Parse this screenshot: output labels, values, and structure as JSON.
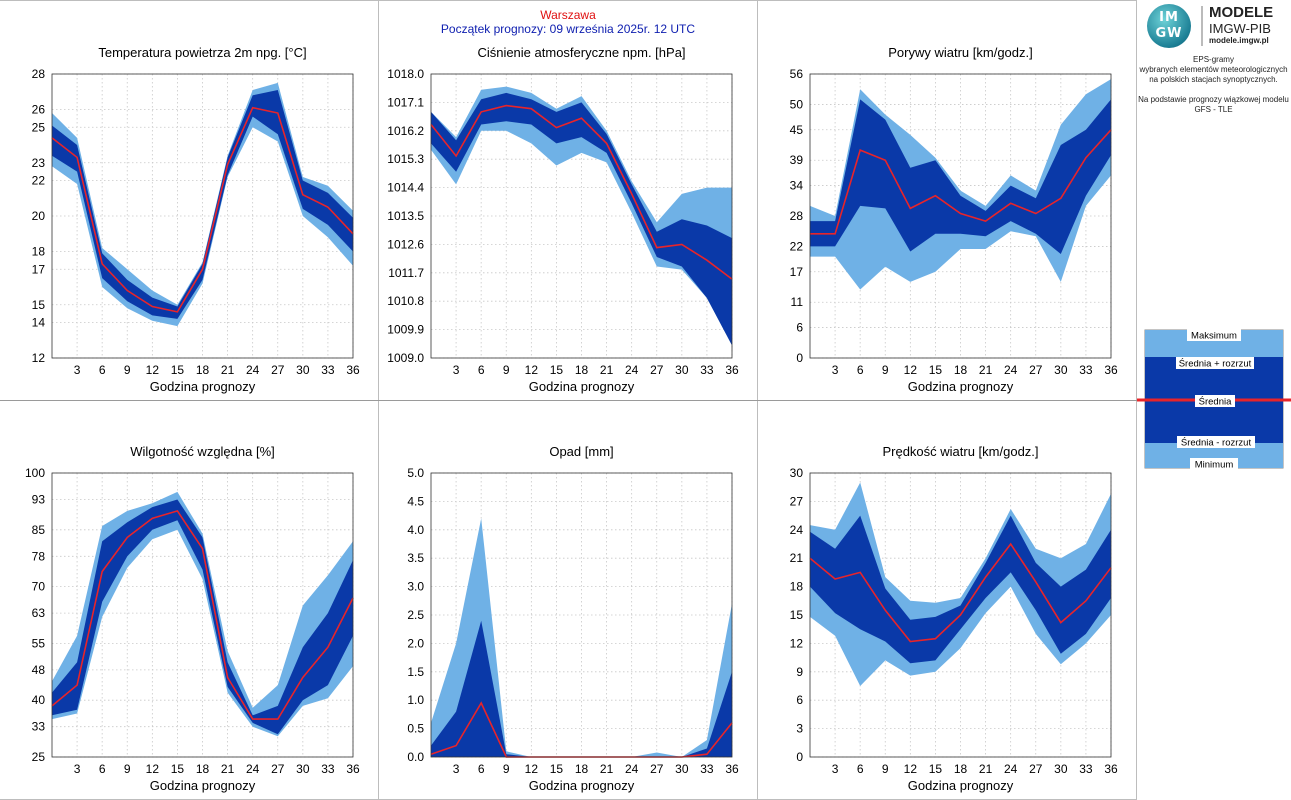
{
  "header": {
    "station": "Warszawa",
    "forecast_start": "Początek prognozy: 09 września 2025r. 12 UTC"
  },
  "logo": {
    "line1": "MODELE",
    "line2": "IMGW-PIB",
    "line3": "modele.imgw.pl",
    "mark_top": "IM",
    "mark_bottom": "GW"
  },
  "description": {
    "line1": "EPS-gramy",
    "line2": "wybranych elementów meteorologicznych",
    "line3": "na polskich stacjach  synoptycznych.",
    "line4": "Na podstawie prognozy wiązkowej modelu",
    "line5": "GFS - TLE"
  },
  "legend": {
    "max": "Maksimum",
    "upper": "Średnia + rozrzut",
    "mean": "Średnia",
    "lower": "Średnia - rozrzut",
    "min": "Minimum"
  },
  "colors": {
    "outer_band": "#6fb1e6",
    "inner_band": "#0a39a8",
    "mean_line": "#e8242a",
    "grid": "#c8c8c8",
    "station_text": "#e01010",
    "start_text": "#1020b0"
  },
  "chart_data": [
    {
      "type": "area",
      "title": "Temperatura powietrza 2m npg. [°C]",
      "xlabel": "Godzina prognozy",
      "x": [
        0,
        3,
        6,
        9,
        12,
        15,
        18,
        21,
        24,
        27,
        30,
        33,
        36
      ],
      "xticks": [
        3,
        6,
        9,
        12,
        15,
        18,
        21,
        24,
        27,
        30,
        33,
        36
      ],
      "ylim": [
        12,
        28
      ],
      "yticks": [
        12,
        14,
        15,
        17,
        18,
        20,
        22,
        23,
        25,
        26,
        28
      ],
      "ytick_labels": [
        "12",
        "14",
        "15",
        "17",
        "18",
        "20",
        "22",
        "23",
        "25",
        "26",
        "28"
      ],
      "series": [
        {
          "name": "Maksimum",
          "values": [
            25.8,
            24.4,
            18.2,
            17.0,
            15.8,
            15.0,
            17.4,
            23.4,
            27.1,
            27.5,
            22.2,
            21.7,
            20.3
          ]
        },
        {
          "name": "Średnia + rozrzut",
          "values": [
            25.1,
            24.0,
            17.9,
            16.4,
            15.4,
            14.9,
            17.3,
            23.3,
            26.8,
            27.1,
            22.0,
            21.3,
            19.9
          ]
        },
        {
          "name": "Średnia",
          "values": [
            24.4,
            23.3,
            17.3,
            15.8,
            14.9,
            14.6,
            17.0,
            22.9,
            26.1,
            25.8,
            21.2,
            20.5,
            19.0
          ]
        },
        {
          "name": "Średnia - rozrzut",
          "values": [
            23.4,
            22.5,
            16.5,
            15.2,
            14.4,
            14.2,
            16.4,
            22.3,
            25.6,
            24.6,
            20.4,
            19.5,
            18.0
          ]
        },
        {
          "name": "Minimum",
          "values": [
            22.8,
            21.8,
            16.0,
            14.8,
            14.1,
            13.8,
            16.2,
            22.2,
            25.0,
            24.2,
            20.0,
            18.8,
            17.2
          ]
        }
      ]
    },
    {
      "type": "area",
      "title": "Ciśnienie atmosferyczne npm. [hPa]",
      "xlabel": "Godzina prognozy",
      "x": [
        0,
        3,
        6,
        9,
        12,
        15,
        18,
        21,
        24,
        27,
        30,
        33,
        36
      ],
      "xticks": [
        3,
        6,
        9,
        12,
        15,
        18,
        21,
        24,
        27,
        30,
        33,
        36
      ],
      "ylim": [
        1009.0,
        1018.0
      ],
      "yticks": [
        1009.0,
        1009.9,
        1010.8,
        1011.7,
        1012.6,
        1013.5,
        1014.4,
        1015.3,
        1016.2,
        1017.1,
        1018.0
      ],
      "ytick_labels": [
        "1009.0",
        "1009.9",
        "1010.8",
        "1011.7",
        "1012.6",
        "1013.5",
        "1014.4",
        "1015.3",
        "1016.2",
        "1017.1",
        "1018.0"
      ],
      "series": [
        {
          "name": "Maksimum",
          "values": [
            1016.8,
            1016.0,
            1017.5,
            1017.6,
            1017.4,
            1016.9,
            1017.3,
            1016.2,
            1014.6,
            1013.3,
            1014.2,
            1014.4,
            1014.4
          ]
        },
        {
          "name": "Średnia + rozrzut",
          "values": [
            1016.8,
            1015.9,
            1017.2,
            1017.4,
            1017.2,
            1016.8,
            1017.1,
            1016.1,
            1014.5,
            1013.0,
            1013.4,
            1013.2,
            1012.8
          ]
        },
        {
          "name": "Średnia",
          "values": [
            1016.4,
            1015.4,
            1016.8,
            1017.0,
            1016.9,
            1016.3,
            1016.6,
            1015.8,
            1014.2,
            1012.5,
            1012.6,
            1012.1,
            1011.5
          ]
        },
        {
          "name": "Średnia - rozrzut",
          "values": [
            1015.8,
            1014.9,
            1016.4,
            1016.5,
            1016.4,
            1015.8,
            1016.0,
            1015.5,
            1013.9,
            1012.2,
            1011.9,
            1010.9,
            1009.4
          ]
        },
        {
          "name": "Minimum",
          "values": [
            1015.6,
            1014.5,
            1016.2,
            1016.2,
            1015.8,
            1015.1,
            1015.5,
            1015.2,
            1013.6,
            1011.9,
            1011.8,
            1010.9,
            1009.4
          ]
        }
      ]
    },
    {
      "type": "area",
      "title": "Porywy wiatru [km/godz.]",
      "xlabel": "Godzina prognozy",
      "x": [
        0,
        3,
        6,
        9,
        12,
        15,
        18,
        21,
        24,
        27,
        30,
        33,
        36
      ],
      "xticks": [
        3,
        6,
        9,
        12,
        15,
        18,
        21,
        24,
        27,
        30,
        33,
        36
      ],
      "ylim": [
        0,
        56
      ],
      "yticks": [
        0,
        6,
        11,
        17,
        22,
        28,
        34,
        39,
        45,
        50,
        56
      ],
      "ytick_labels": [
        "0",
        "6",
        "11",
        "17",
        "22",
        "28",
        "34",
        "39",
        "45",
        "50",
        "56"
      ],
      "series": [
        {
          "name": "Maksimum",
          "values": [
            30.0,
            28.0,
            53.0,
            48.0,
            44.0,
            39.5,
            33.0,
            30.0,
            36.0,
            33.0,
            46.0,
            52.0,
            55.0
          ]
        },
        {
          "name": "Średnia + rozrzut",
          "values": [
            27.0,
            27.0,
            51.0,
            47.0,
            37.5,
            39.0,
            32.0,
            29.0,
            34.0,
            31.5,
            42.0,
            45.0,
            51.0
          ]
        },
        {
          "name": "Średnia",
          "values": [
            24.5,
            24.5,
            41.0,
            39.0,
            29.5,
            32.0,
            28.5,
            27.0,
            30.5,
            28.5,
            31.5,
            39.5,
            45.0
          ]
        },
        {
          "name": "Średnia - rozrzut",
          "values": [
            22.0,
            22.0,
            30.0,
            29.5,
            21.0,
            24.5,
            24.5,
            24.0,
            27.0,
            24.5,
            20.5,
            32.0,
            40.0
          ]
        },
        {
          "name": "Minimum",
          "values": [
            20.0,
            20.0,
            13.5,
            18.0,
            15.0,
            17.0,
            21.5,
            21.5,
            25.0,
            24.0,
            15.0,
            30.0,
            36.0
          ]
        }
      ]
    },
    {
      "type": "area",
      "title": "Wilgotność względna [%]",
      "xlabel": "Godzina prognozy",
      "x": [
        0,
        3,
        6,
        9,
        12,
        15,
        18,
        21,
        24,
        27,
        30,
        33,
        36
      ],
      "xticks": [
        3,
        6,
        9,
        12,
        15,
        18,
        21,
        24,
        27,
        30,
        33,
        36
      ],
      "ylim": [
        25,
        100
      ],
      "yticks": [
        25,
        33,
        40,
        48,
        55,
        63,
        70,
        78,
        85,
        93,
        100
      ],
      "ytick_labels": [
        "25",
        "33",
        "40",
        "48",
        "55",
        "63",
        "70",
        "78",
        "85",
        "93",
        "100"
      ],
      "series": [
        {
          "name": "Maksimum",
          "values": [
            45.0,
            57.0,
            86.0,
            90.0,
            92.0,
            95.0,
            84.0,
            53.0,
            38.0,
            44.0,
            65.0,
            73.0,
            82.0
          ]
        },
        {
          "name": "Średnia + rozrzut",
          "values": [
            42.0,
            50.0,
            82.0,
            87.0,
            91.0,
            93.0,
            83.0,
            50.0,
            36.0,
            38.5,
            54.0,
            63.0,
            77.0
          ]
        },
        {
          "name": "Średnia",
          "values": [
            38.5,
            44.0,
            74.0,
            83.0,
            88.0,
            90.0,
            80.0,
            46.0,
            35.0,
            35.0,
            46.0,
            54.0,
            67.0
          ]
        },
        {
          "name": "Średnia - rozrzut",
          "values": [
            36.0,
            37.5,
            66.0,
            78.0,
            85.0,
            87.5,
            74.5,
            43.5,
            34.0,
            31.0,
            40.0,
            44.0,
            57.0
          ]
        },
        {
          "name": "Minimum",
          "values": [
            35.0,
            36.5,
            62.0,
            75.0,
            82.5,
            85.0,
            72.0,
            42.0,
            33.0,
            30.5,
            38.5,
            40.5,
            49.0
          ]
        }
      ]
    },
    {
      "type": "area",
      "title": "Opad [mm]",
      "xlabel": "Godzina prognozy",
      "x": [
        0,
        3,
        6,
        9,
        12,
        15,
        18,
        21,
        24,
        27,
        30,
        33,
        36
      ],
      "xticks": [
        3,
        6,
        9,
        12,
        15,
        18,
        21,
        24,
        27,
        30,
        33,
        36
      ],
      "ylim": [
        0,
        5.0
      ],
      "yticks": [
        0,
        0.5,
        1.0,
        1.5,
        2.0,
        2.5,
        3.0,
        3.5,
        4.0,
        4.5,
        5.0
      ],
      "ytick_labels": [
        "0.0",
        "0.5",
        "1.0",
        "1.5",
        "2.0",
        "2.5",
        "3.0",
        "3.5",
        "4.0",
        "4.5",
        "5.0"
      ],
      "series": [
        {
          "name": "Maksimum",
          "values": [
            0.6,
            2.0,
            4.2,
            0.1,
            0.0,
            0.0,
            0.0,
            0.0,
            0.0,
            0.08,
            0.0,
            0.3,
            2.7
          ]
        },
        {
          "name": "Średnia + rozrzut",
          "values": [
            0.2,
            0.8,
            2.4,
            0.05,
            0.0,
            0.0,
            0.0,
            0.0,
            0.0,
            0.0,
            0.0,
            0.15,
            1.5
          ]
        },
        {
          "name": "Średnia",
          "values": [
            0.05,
            0.2,
            0.95,
            0.0,
            0.0,
            0.0,
            0.0,
            0.0,
            0.0,
            0.0,
            0.0,
            0.05,
            0.6
          ]
        },
        {
          "name": "Średnia - rozrzut",
          "values": [
            0.0,
            0.0,
            0.0,
            0.0,
            0.0,
            0.0,
            0.0,
            0.0,
            0.0,
            0.0,
            0.0,
            0.0,
            0.0
          ]
        },
        {
          "name": "Minimum",
          "values": [
            0.0,
            0.0,
            0.0,
            0.0,
            0.0,
            0.0,
            0.0,
            0.0,
            0.0,
            0.0,
            0.0,
            0.0,
            0.0
          ]
        }
      ]
    },
    {
      "type": "area",
      "title": "Prędkość wiatru [km/godz.]",
      "xlabel": "Godzina prognozy",
      "x": [
        0,
        3,
        6,
        9,
        12,
        15,
        18,
        21,
        24,
        27,
        30,
        33,
        36
      ],
      "xticks": [
        3,
        6,
        9,
        12,
        15,
        18,
        21,
        24,
        27,
        30,
        33,
        36
      ],
      "ylim": [
        0,
        30
      ],
      "yticks": [
        0,
        3,
        6,
        9,
        12,
        15,
        18,
        21,
        24,
        27,
        30
      ],
      "ytick_labels": [
        "0",
        "3",
        "6",
        "9",
        "12",
        "15",
        "18",
        "21",
        "24",
        "27",
        "30"
      ],
      "series": [
        {
          "name": "Maksimum",
          "values": [
            24.5,
            24.0,
            29.0,
            19.0,
            16.5,
            16.3,
            16.8,
            21.0,
            26.2,
            22.0,
            21.0,
            22.5,
            27.8
          ]
        },
        {
          "name": "Średnia + rozrzut",
          "values": [
            23.8,
            22.0,
            25.5,
            17.8,
            14.5,
            14.8,
            16.0,
            20.5,
            25.5,
            20.5,
            18.0,
            19.8,
            24.0
          ]
        },
        {
          "name": "Średnia",
          "values": [
            21.0,
            18.8,
            19.5,
            15.5,
            12.2,
            12.5,
            15.0,
            19.0,
            22.5,
            18.5,
            14.2,
            16.5,
            20.0
          ]
        },
        {
          "name": "Średnia - rozrzut",
          "values": [
            18.0,
            15.2,
            13.5,
            12.2,
            9.9,
            10.2,
            13.5,
            16.8,
            19.5,
            15.5,
            10.9,
            13.0,
            16.8
          ]
        },
        {
          "name": "Minimum",
          "values": [
            14.8,
            12.8,
            7.5,
            10.2,
            8.6,
            9.0,
            11.5,
            15.2,
            18.0,
            13.0,
            9.8,
            12.0,
            15.0
          ]
        }
      ]
    }
  ]
}
